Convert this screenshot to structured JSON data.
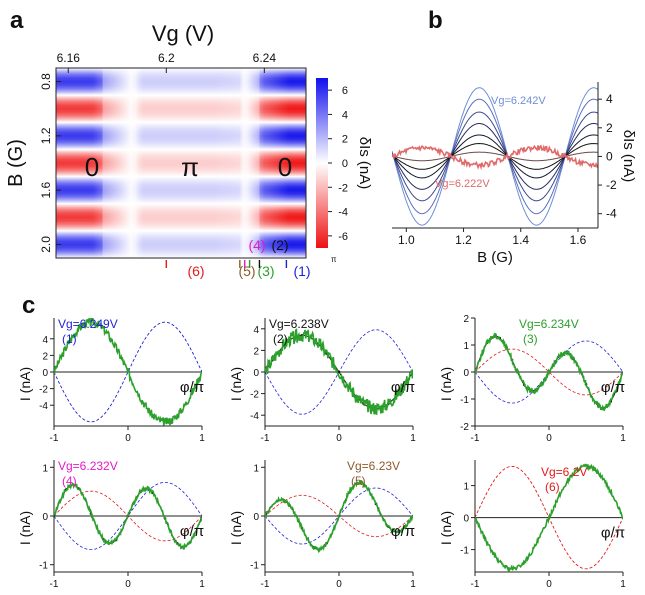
{
  "figure": {
    "panel_labels": {
      "a": "a",
      "b": "b",
      "c": "c"
    },
    "colors": {
      "red": "#e41a1c",
      "blue": "#1f1fd9",
      "green": "#2ca02c",
      "black": "#111111",
      "magenta": "#e619c8",
      "brown": "#8c5a2b",
      "light_blue": "#6f8fd8",
      "light_red": "#e06a6a"
    }
  },
  "chart_data": [
    {
      "panel": "a",
      "type": "heatmap",
      "title": "Vg (V)",
      "xlabel": "Vg (V)",
      "ylabel": "B (G)",
      "x_ticks": [
        "6.16",
        "6.2",
        "6.24"
      ],
      "x_tick_values": [
        6.16,
        6.2,
        6.24
      ],
      "xlim": [
        6.155,
        6.257
      ],
      "y_ticks": [
        "0.8",
        "1.2",
        "1.6",
        "2.0"
      ],
      "y_tick_values": [
        0.8,
        1.2,
        1.6,
        2.0
      ],
      "ylim": [
        0.7,
        2.1
      ],
      "phase_labels": [
        "0",
        "π",
        "0"
      ],
      "colorbar": {
        "label": "δIs (nA)",
        "ticks": [
          "6",
          "4",
          "2",
          "0",
          "-2",
          "-4",
          "-6"
        ],
        "tick_values": [
          6,
          4,
          2,
          0,
          -2,
          -4,
          -6
        ],
        "range": [
          -7,
          7
        ],
        "corner_label": "π"
      },
      "amplitude_profile": {
        "vg": [
          6.155,
          6.17,
          6.18,
          6.19,
          6.2,
          6.22,
          6.23,
          6.24,
          6.25,
          6.257
        ],
        "amp": [
          6,
          6,
          2.5,
          -1.5,
          -1.5,
          -1.5,
          -1.2,
          5,
          7,
          7
        ]
      },
      "markers": [
        {
          "label": "(1)",
          "vg": 6.249,
          "color": "#1f1fd9"
        },
        {
          "label": "(2)",
          "vg": 6.238,
          "color": "#111111"
        },
        {
          "label": "(3)",
          "vg": 6.234,
          "color": "#2ca02c"
        },
        {
          "label": "(4)",
          "vg": 6.232,
          "color": "#e619c8"
        },
        {
          "label": "(5)",
          "vg": 6.23,
          "color": "#8c5a2b"
        },
        {
          "label": "(6)",
          "vg": 6.2,
          "color": "#e41a1c"
        }
      ]
    },
    {
      "panel": "b",
      "type": "line",
      "xlabel": "B (G)",
      "ylabel": "δIs (nA)",
      "x_ticks": [
        "1.0",
        "1.2",
        "1.4",
        "1.6"
      ],
      "x_tick_values": [
        1.0,
        1.2,
        1.4,
        1.6
      ],
      "xlim": [
        0.95,
        1.67
      ],
      "y_ticks": [
        "4",
        "2",
        "0",
        "-2",
        "-4"
      ],
      "y_tick_values": [
        4,
        2,
        0,
        -2,
        -4
      ],
      "ylim": [
        -5,
        5.2
      ],
      "annotations": [
        "Vg=6.242V",
        "Vg=6.222V"
      ],
      "series": [
        {
          "amplitude": 4.8,
          "color": "#6f8fd8"
        },
        {
          "amplitude": 4.0,
          "color": "#5b6fbf"
        },
        {
          "amplitude": 3.1,
          "color": "#3d4a8f"
        },
        {
          "amplitude": 2.3,
          "color": "#262d5e"
        },
        {
          "amplitude": 1.5,
          "color": "#141730"
        },
        {
          "amplitude": 0.9,
          "color": "#111111"
        },
        {
          "amplitude": 0.3,
          "color": "#6a4a4a"
        },
        {
          "amplitude": -0.6,
          "color": "#e06a6a"
        }
      ]
    },
    {
      "panel": "c",
      "type": "line",
      "subplots": [
        {
          "id": 1,
          "vg_label": "Vg=6.249V",
          "tag": "(1)",
          "color": "#1f1fd9",
          "xlabel": "φ/π",
          "ylabel": "I (nA)",
          "x_ticks": [
            "-1",
            "0",
            "1"
          ],
          "y_ticks": [
            "4",
            "2",
            "0",
            "-2",
            "-4"
          ],
          "y_tick_values": [
            4,
            2,
            0,
            -2,
            -4
          ],
          "ylim": [
            -6.5,
            6.5
          ],
          "c1": -6.0,
          "c2": 0.0,
          "noise": 0.08
        },
        {
          "id": 2,
          "vg_label": "Vg=6.238V",
          "tag": "(2)",
          "color": "#111111",
          "xlabel": "φ/π",
          "ylabel": "I (nA)",
          "x_ticks": [
            "-1",
            "0",
            "1"
          ],
          "y_ticks": [
            "4",
            "2",
            "0",
            "-2",
            "-4"
          ],
          "y_tick_values": [
            4,
            2,
            0,
            -2,
            -4
          ],
          "ylim": [
            -5,
            5
          ],
          "c1": -3.4,
          "c2": 0.0,
          "noise": 0.18
        },
        {
          "id": 3,
          "vg_label": "Vg=6.234V",
          "tag": "(3)",
          "color": "#2ca02c",
          "xlabel": "φ/π",
          "ylabel": "I (nA)",
          "x_ticks": [
            "-1",
            "0",
            "1"
          ],
          "y_ticks": [
            "2",
            "1",
            "0",
            "-1",
            "-2"
          ],
          "y_tick_values": [
            2,
            1,
            0,
            -1,
            -2
          ],
          "ylim": [
            -2,
            2
          ],
          "c1": -0.45,
          "c2": 1.0,
          "noise": 0.1
        },
        {
          "id": 4,
          "vg_label": "Vg=6.232V",
          "tag": "(4)",
          "color": "#e619c8",
          "xlabel": "φ/π",
          "ylabel": "I (nA)",
          "x_ticks": [
            "-1",
            "0",
            "1"
          ],
          "y_ticks": [
            "1",
            "0",
            "-1"
          ],
          "y_tick_values": [
            1,
            0,
            -1
          ],
          "ylim": [
            -1.15,
            1.15
          ],
          "c1": -0.05,
          "c2": 0.6,
          "noise": 0.07
        },
        {
          "id": 5,
          "vg_label": "Vg=6.23V",
          "tag": "(5)",
          "color": "#8c5a2b",
          "xlabel": "φ/π",
          "ylabel": "I (nA)",
          "x_ticks": [
            "-1",
            "0",
            "1"
          ],
          "y_ticks": [
            "1",
            "0",
            "-1"
          ],
          "y_tick_values": [
            1,
            0,
            -1
          ],
          "ylim": [
            -1.15,
            1.15
          ],
          "c1": 0.25,
          "c2": 0.5,
          "noise": 0.08
        },
        {
          "id": 6,
          "vg_label": "Vg=6.2V",
          "tag": "(6)",
          "color": "#e41a1c",
          "xlabel": "φ/π",
          "ylabel": "I (nA)",
          "x_ticks": [
            "-1",
            "0",
            "1"
          ],
          "y_ticks": [
            "1",
            "0",
            "-1"
          ],
          "y_tick_values": [
            1,
            0,
            -1
          ],
          "ylim": [
            -1.7,
            1.8
          ],
          "c1": 1.6,
          "c2": 0.0,
          "noise": 0.04
        }
      ]
    }
  ]
}
